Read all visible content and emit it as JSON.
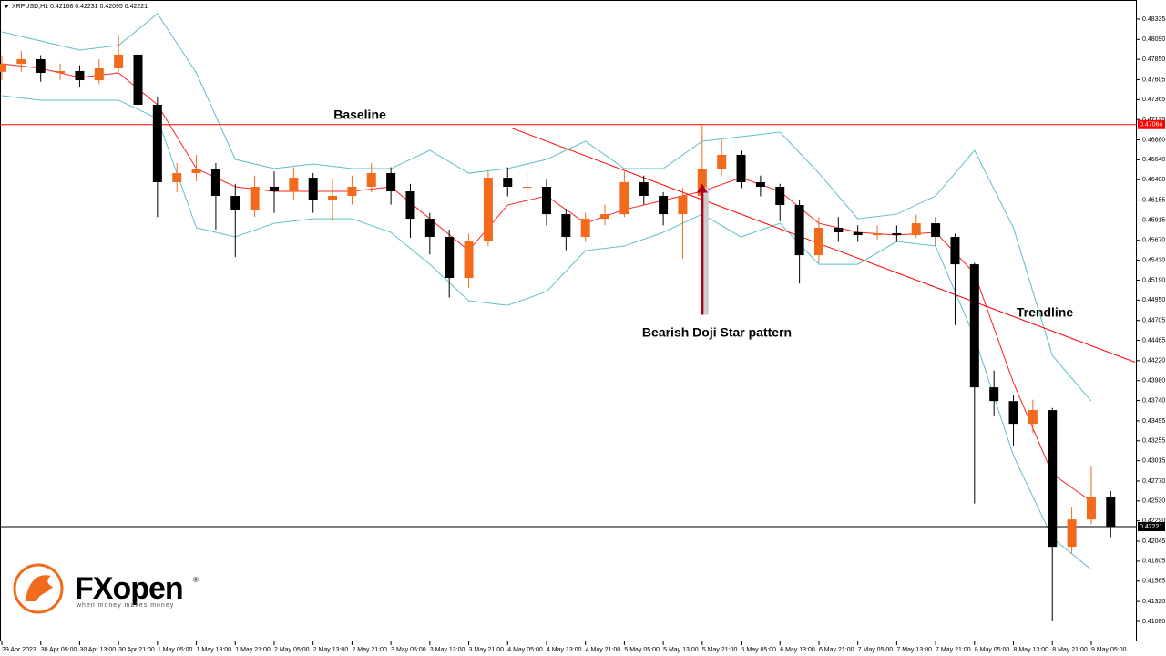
{
  "chart_data": {
    "type": "candlestick",
    "header": "XRPUSD,H1 0.42168 0.42231 0.42095 0.42221",
    "up_color": "#f26a1b",
    "down_color": "#000000",
    "xlim": [
      0,
      233
    ],
    "ylim": [
      0.40838,
      0.48565
    ],
    "candles": {
      "x": [
        0,
        4,
        8,
        12,
        16,
        20,
        24,
        28,
        32,
        36,
        40,
        44,
        48,
        52,
        56,
        60,
        64,
        68,
        72,
        76,
        80,
        84,
        88,
        92,
        96,
        100,
        104,
        108,
        112,
        116,
        120,
        124,
        128,
        132,
        136,
        140,
        144,
        148,
        152,
        156,
        160,
        164,
        168,
        172,
        176,
        180,
        184,
        188,
        192,
        196,
        200,
        204,
        208,
        212,
        216,
        220,
        224,
        228
      ],
      "open": [
        0.477,
        0.47797,
        0.47852,
        0.47687,
        0.47709,
        0.47599,
        0.47742,
        0.47907,
        0.47303,
        0.4637,
        0.46479,
        0.46534,
        0.46205,
        0.4604,
        0.46315,
        0.4626,
        0.46424,
        0.4615,
        0.46205,
        0.46315,
        0.46479,
        0.4626,
        0.4593,
        0.45711,
        0.45217,
        0.45656,
        0.46424,
        0.46315,
        0.46315,
        0.45985,
        0.45711,
        0.4593,
        0.45985,
        0.4637,
        0.46205,
        0.45985,
        0.46205,
        0.46534,
        0.46699,
        0.4637,
        0.46315,
        0.46095,
        0.45491,
        0.45821,
        0.45766,
        0.45733,
        0.45755,
        0.45733,
        0.45875,
        0.45711,
        0.45381,
        0.43899,
        0.43734,
        0.4346,
        0.43625,
        0.41978,
        0.42307,
        0.42581
      ],
      "high": [
        0.479,
        0.4795,
        0.479,
        0.478,
        0.4778,
        0.4785,
        0.4815,
        0.4795,
        0.474,
        0.466,
        0.467,
        0.466,
        0.4635,
        0.4645,
        0.465,
        0.4655,
        0.4648,
        0.464,
        0.4645,
        0.466,
        0.4655,
        0.4635,
        0.46,
        0.458,
        0.4575,
        0.465,
        0.4655,
        0.4648,
        0.464,
        0.4605,
        0.46,
        0.461,
        0.465,
        0.4645,
        0.4625,
        0.463,
        0.47064,
        0.4688,
        0.4675,
        0.4645,
        0.4635,
        0.4615,
        0.4595,
        0.4595,
        0.4585,
        0.4585,
        0.4585,
        0.4598,
        0.4595,
        0.4575,
        0.454,
        0.441,
        0.438,
        0.4375,
        0.4365,
        0.4245,
        0.4295,
        0.4265
      ],
      "low": [
        0.476,
        0.477,
        0.4758,
        0.476,
        0.4752,
        0.4755,
        0.477,
        0.4688,
        0.4595,
        0.4625,
        0.4638,
        0.458,
        0.4547,
        0.4595,
        0.46,
        0.4615,
        0.46,
        0.459,
        0.461,
        0.4625,
        0.461,
        0.457,
        0.455,
        0.4498,
        0.451,
        0.456,
        0.462,
        0.4615,
        0.4585,
        0.4555,
        0.4565,
        0.4585,
        0.4595,
        0.461,
        0.4585,
        0.4545,
        0.4615,
        0.4645,
        0.463,
        0.462,
        0.459,
        0.4515,
        0.454,
        0.4565,
        0.4565,
        0.4568,
        0.4565,
        0.457,
        0.456,
        0.4465,
        0.425,
        0.4355,
        0.432,
        0.4335,
        0.4108,
        0.419,
        0.4225,
        0.42095
      ],
      "close": [
        0.47797,
        0.47852,
        0.47687,
        0.47709,
        0.47599,
        0.47742,
        0.47907,
        0.47303,
        0.4637,
        0.46479,
        0.46534,
        0.46205,
        0.4604,
        0.46315,
        0.4626,
        0.46424,
        0.4615,
        0.46205,
        0.46315,
        0.46479,
        0.4626,
        0.4593,
        0.45711,
        0.45217,
        0.45656,
        0.46424,
        0.46315,
        0.46315,
        0.45985,
        0.45711,
        0.4593,
        0.45985,
        0.4637,
        0.46205,
        0.45985,
        0.46205,
        0.46534,
        0.46699,
        0.4637,
        0.46315,
        0.46095,
        0.45491,
        0.45821,
        0.45766,
        0.45733,
        0.45755,
        0.45733,
        0.45875,
        0.45711,
        0.45381,
        0.43899,
        0.43734,
        0.4346,
        0.43625,
        0.41978,
        0.42307,
        0.42581,
        0.42221
      ]
    },
    "indicators": [
      {
        "color": "#5bc0c8",
        "x": [
          0,
          8,
          16,
          24,
          32,
          40,
          48,
          56,
          64,
          72,
          80,
          88,
          96,
          104,
          112,
          120,
          128,
          136,
          144,
          152,
          160,
          168,
          176,
          184,
          192,
          200,
          208,
          216,
          224
        ],
        "values": [
          0.48181,
          0.48071,
          0.47962,
          0.48017,
          0.48401,
          0.47687,
          0.46644,
          0.46534,
          0.46589,
          0.46534,
          0.46534,
          0.46754,
          0.46479,
          0.46534,
          0.46644,
          0.46864,
          0.46534,
          0.46534,
          0.46864,
          0.46919,
          0.46973,
          0.46479,
          0.4593,
          0.45985,
          0.46205,
          0.46754,
          0.45821,
          0.44283,
          0.43734
        ]
      },
      {
        "color": "#5bc0c8",
        "x": [
          0,
          8,
          16,
          24,
          32,
          40,
          48,
          56,
          64,
          72,
          80,
          88,
          96,
          104,
          112,
          120,
          128,
          136,
          144,
          152,
          160,
          168,
          176,
          184,
          192,
          200,
          208,
          216,
          224
        ],
        "values": [
          0.47413,
          0.47358,
          0.47358,
          0.47358,
          0.47138,
          0.45821,
          0.45711,
          0.45875,
          0.4593,
          0.4593,
          0.45766,
          0.45381,
          0.44942,
          0.44887,
          0.45052,
          0.45546,
          0.45601,
          0.45766,
          0.45985,
          0.45711,
          0.45875,
          0.45381,
          0.45381,
          0.45656,
          0.45601,
          0.44503,
          0.43076,
          0.42087,
          0.41703
        ]
      },
      {
        "color": "#ff2020",
        "x": [
          0,
          8,
          16,
          24,
          32,
          40,
          48,
          56,
          64,
          72,
          80,
          88,
          96,
          104,
          112,
          120,
          128,
          136,
          144,
          152,
          160,
          168,
          176,
          184,
          192,
          200,
          208,
          216,
          224
        ],
        "values": [
          0.47797,
          0.47742,
          0.47632,
          0.47687,
          0.47303,
          0.46534,
          0.46315,
          0.4626,
          0.4626,
          0.4626,
          0.46315,
          0.4593,
          0.45546,
          0.46095,
          0.46205,
          0.45875,
          0.4604,
          0.4615,
          0.4626,
          0.46424,
          0.4626,
          0.45875,
          0.45766,
          0.45733,
          0.45766,
          0.45272,
          0.43954,
          0.42856,
          0.42527
        ]
      }
    ],
    "baseline": {
      "value": 0.47064,
      "color": "#ff0000"
    },
    "last_price": {
      "value": 0.42221,
      "color": "#000000"
    },
    "trendline": {
      "x": [
        105,
        233
      ],
      "values": [
        0.47018,
        0.44202
      ],
      "color": "#ff0000"
    },
    "arrow": {
      "x": 144,
      "values": [
        0.44773,
        0.46353
      ],
      "color": "#b0001a"
    },
    "annotations": [
      "Baseline",
      "Bearish Doji Star pattern",
      "Trendline"
    ],
    "yticks": [
      {
        "value": 0.48335,
        "label": "0.48335"
      },
      {
        "value": 0.4809,
        "label": "0.48090"
      },
      {
        "value": 0.4785,
        "label": "0.47850"
      },
      {
        "value": 0.47605,
        "label": "0.47605"
      },
      {
        "value": 0.47365,
        "label": "0.47365"
      },
      {
        "value": 0.47125,
        "label": "0.47125"
      },
      {
        "value": 0.4688,
        "label": "0.46880"
      },
      {
        "value": 0.4664,
        "label": "0.46640"
      },
      {
        "value": 0.464,
        "label": "0.46400"
      },
      {
        "value": 0.46155,
        "label": "0.46155"
      },
      {
        "value": 0.45915,
        "label": "0.45915"
      },
      {
        "value": 0.4567,
        "label": "0.45670"
      },
      {
        "value": 0.4543,
        "label": "0.45430"
      },
      {
        "value": 0.4519,
        "label": "0.45190"
      },
      {
        "value": 0.4495,
        "label": "0.44950"
      },
      {
        "value": 0.44705,
        "label": "0.44705"
      },
      {
        "value": 0.44465,
        "label": "0.44465"
      },
      {
        "value": 0.4422,
        "label": "0.44220"
      },
      {
        "value": 0.4398,
        "label": "0.43980"
      },
      {
        "value": 0.4374,
        "label": "0.43740"
      },
      {
        "value": 0.43495,
        "label": "0.43495"
      },
      {
        "value": 0.43255,
        "label": "0.43255"
      },
      {
        "value": 0.43015,
        "label": "0.43015"
      },
      {
        "value": 0.4277,
        "label": "0.42770"
      },
      {
        "value": 0.4253,
        "label": "0.42530"
      },
      {
        "value": 0.4229,
        "label": "0.42290"
      },
      {
        "value": 0.42045,
        "label": "0.42045"
      },
      {
        "value": 0.41805,
        "label": "0.41805"
      },
      {
        "value": 0.41565,
        "label": "0.41565"
      },
      {
        "value": 0.4132,
        "label": "0.41320"
      },
      {
        "value": 0.4108,
        "label": "0.41080"
      }
    ],
    "xticks": [
      {
        "value": 0,
        "label": "29 Apr 2023"
      },
      {
        "value": 8,
        "label": "30 Apr 05:00"
      },
      {
        "value": 16,
        "label": "30 Apr 13:00"
      },
      {
        "value": 24,
        "label": "30 Apr 21:00"
      },
      {
        "value": 32,
        "label": "1 May 05:00"
      },
      {
        "value": 40,
        "label": "1 May 13:00"
      },
      {
        "value": 48,
        "label": "1 May 21:00"
      },
      {
        "value": 56,
        "label": "2 May 05:00"
      },
      {
        "value": 64,
        "label": "2 May 13:00"
      },
      {
        "value": 72,
        "label": "2 May 21:00"
      },
      {
        "value": 80,
        "label": "3 May 05:00"
      },
      {
        "value": 88,
        "label": "3 May 13:00"
      },
      {
        "value": 96,
        "label": "3 May 21:00"
      },
      {
        "value": 104,
        "label": "4 May 05:00"
      },
      {
        "value": 112,
        "label": "4 May 13:00"
      },
      {
        "value": 120,
        "label": "4 May 21:00"
      },
      {
        "value": 128,
        "label": "5 May 05:00"
      },
      {
        "value": 136,
        "label": "5 May 13:00"
      },
      {
        "value": 144,
        "label": "5 May 21:00"
      },
      {
        "value": 152,
        "label": "6 May 05:00"
      },
      {
        "value": 160,
        "label": "6 May 13:00"
      },
      {
        "value": 168,
        "label": "6 May 21:00"
      },
      {
        "value": 176,
        "label": "7 May 05:00"
      },
      {
        "value": 184,
        "label": "7 May 13:00"
      },
      {
        "value": 192,
        "label": "7 May 21:00"
      },
      {
        "value": 200,
        "label": "8 May 05:00"
      },
      {
        "value": 208,
        "label": "8 May 13:00"
      },
      {
        "value": 216,
        "label": "8 May 21:00"
      },
      {
        "value": 224,
        "label": "9 May 05:00"
      }
    ],
    "logo": {
      "brand": "FXopen",
      "mark": "®",
      "tagline": "when money makes money"
    }
  }
}
